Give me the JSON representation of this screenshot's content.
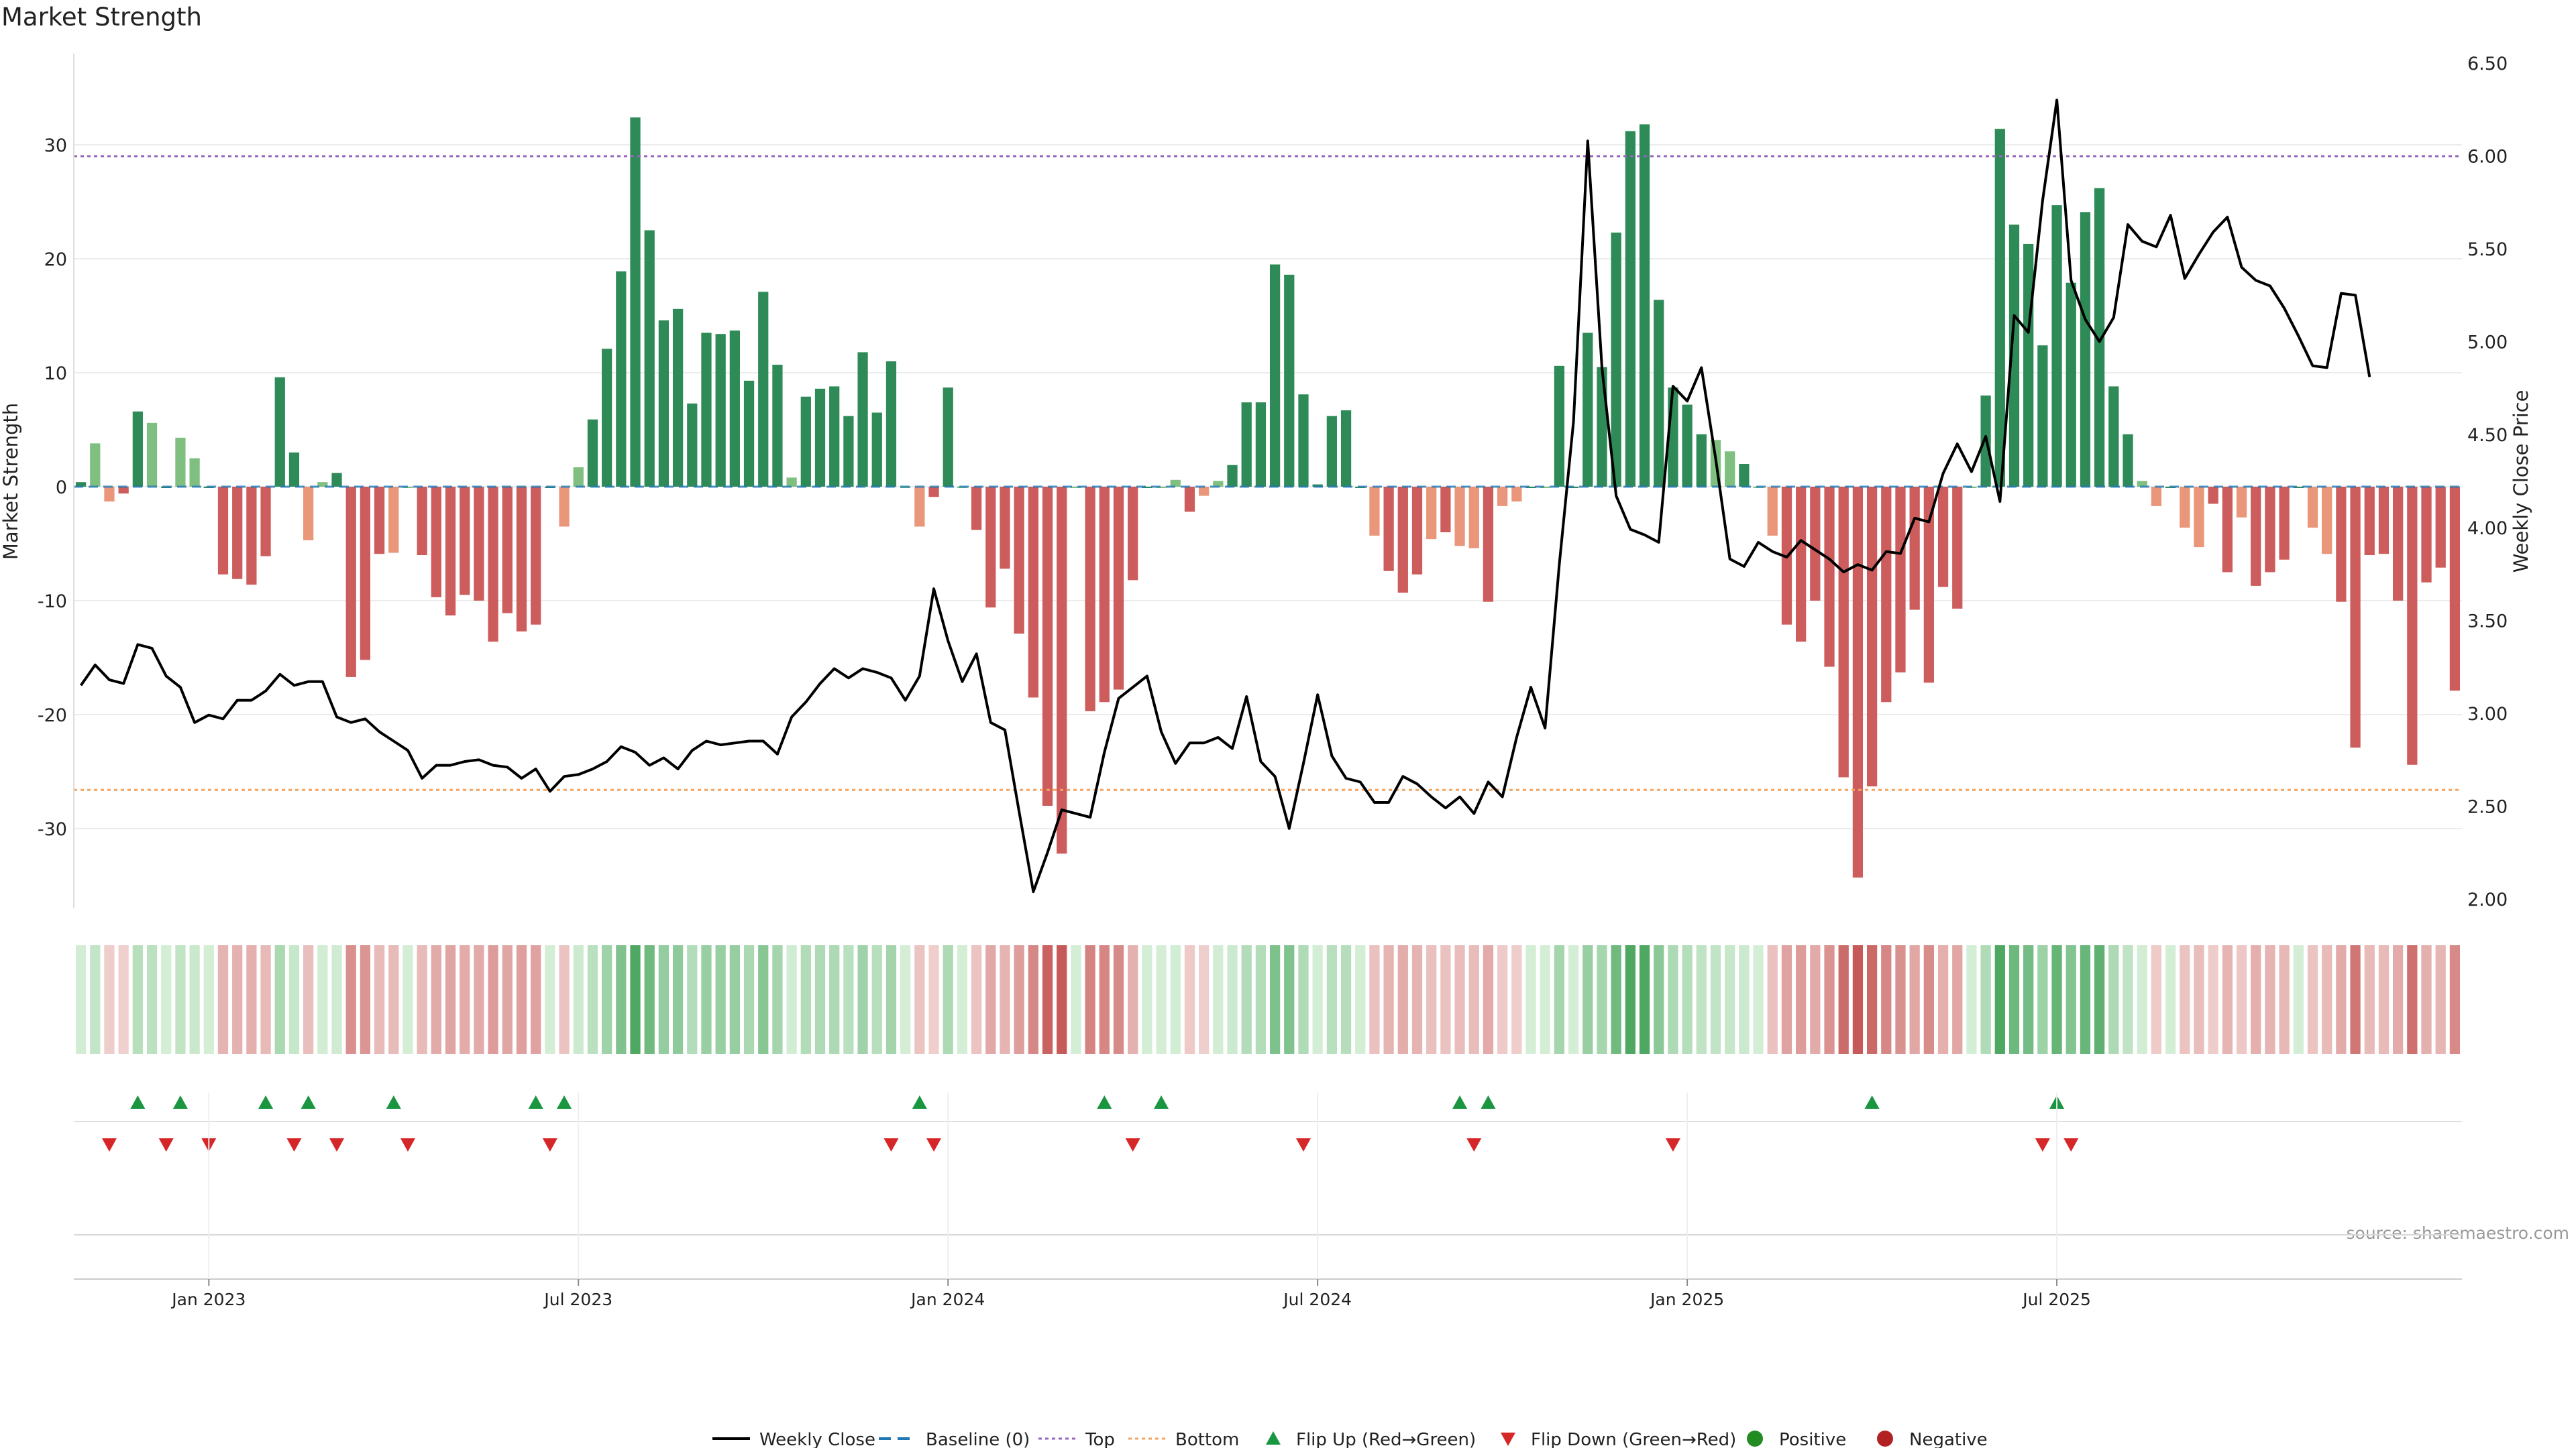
{
  "chart_data": {
    "type": "bar",
    "title": "Market Strength",
    "ylabel_left": "Market Strength",
    "ylabel_right": "Weekly Close Price",
    "source": "source: sharemaestro.com",
    "ylim_left": [
      -37,
      38
    ],
    "ylim_right": [
      1.95,
      6.55
    ],
    "yticks_left": [
      30,
      20,
      10,
      0,
      -10,
      -20,
      -30
    ],
    "yticks_right": [
      "6.50",
      "6.00",
      "5.50",
      "5.00",
      "4.50",
      "4.00",
      "3.50",
      "3.00",
      "2.50",
      "2.00"
    ],
    "x_ticks": [
      {
        "label": "Jan 2023",
        "week": 9
      },
      {
        "label": "Jul 2023",
        "week": 35
      },
      {
        "label": "Jan 2024",
        "week": 61
      },
      {
        "label": "Jul 2024",
        "week": 87
      },
      {
        "label": "Jan 2025",
        "week": 113
      },
      {
        "label": "Jul 2025",
        "week": 139
      }
    ],
    "reference_lines": {
      "top": 29,
      "bottom": -26.6,
      "baseline": 0
    },
    "colors": {
      "pos_dark": "#2e8b57",
      "pos_light": "#7fbf7f",
      "neg_dark": "#cd5c5c",
      "neg_light": "#e9967a",
      "price_line": "#000000",
      "top_line": "#9467bd",
      "bottom_line": "#f4a460",
      "baseline": "#1f77b4",
      "flip_up": "#1a9641",
      "flip_down": "#d62728",
      "positive_dot": "#228b22",
      "negative_dot": "#b22222"
    },
    "strength_values": [
      0.4,
      3.8,
      -1.3,
      -0.6,
      6.6,
      5.6,
      0,
      4.3,
      2.5,
      0,
      -7.7,
      -8.1,
      -8.6,
      -6.1,
      9.6,
      3.0,
      -4.7,
      0.4,
      1.2,
      -16.7,
      -15.2,
      -5.9,
      -5.8,
      0,
      -6.0,
      -9.7,
      -11.3,
      -9.5,
      -10.0,
      -13.6,
      -11.1,
      -12.7,
      -12.1,
      0,
      -3.5,
      1.7,
      5.9,
      12.1,
      18.9,
      32.4,
      22.5,
      14.6,
      15.6,
      7.3,
      13.5,
      13.4,
      13.7,
      9.3,
      17.1,
      10.7,
      0.8,
      7.9,
      8.6,
      8.8,
      6.2,
      11.8,
      6.5,
      11.0,
      0,
      -3.5,
      -0.9,
      8.7,
      0,
      -3.8,
      -10.6,
      -7.2,
      -12.9,
      -18.5,
      -28.0,
      -32.2,
      0,
      -19.7,
      -18.9,
      -17.8,
      -8.2,
      0,
      0,
      0.6,
      -2.2,
      -0.8,
      0.5,
      1.9,
      7.4,
      7.4,
      19.5,
      18.6,
      8.1,
      0.2,
      6.2,
      6.7,
      0,
      -4.3,
      -7.4,
      -9.3,
      -7.7,
      -4.6,
      -4.0,
      -5.2,
      -5.4,
      -10.1,
      -1.7,
      -1.3,
      0,
      0,
      10.6,
      0,
      13.5,
      10.5,
      22.3,
      31.2,
      31.8,
      16.4,
      8.7,
      7.2,
      4.6,
      4.1,
      3.1,
      2.0,
      0,
      -4.3,
      -12.1,
      -13.6,
      -10.0,
      -15.8,
      -25.5,
      -34.3,
      -26.3,
      -18.9,
      -16.3,
      -10.8,
      -17.2,
      -8.8,
      -10.7,
      0,
      8.0,
      31.4,
      23.0,
      21.3,
      12.4,
      24.7,
      17.9,
      24.1,
      26.2,
      8.8,
      4.6,
      0.5,
      -1.7,
      0,
      -3.6,
      -5.3,
      -1.5,
      -7.5,
      -2.7,
      -8.7,
      -7.5,
      -6.4,
      0,
      -3.6,
      -5.9,
      -10.1,
      -22.9,
      -6.0,
      -5.9,
      -10.0,
      -24.4,
      -8.4,
      -7.1,
      -17.9
    ],
    "price_values": [
      3.15,
      3.26,
      3.18,
      3.16,
      3.37,
      3.35,
      3.2,
      3.14,
      2.95,
      2.99,
      2.97,
      3.07,
      3.07,
      3.12,
      3.21,
      3.15,
      3.17,
      3.17,
      2.98,
      2.95,
      2.97,
      2.9,
      2.85,
      2.8,
      2.65,
      2.72,
      2.72,
      2.74,
      2.75,
      2.72,
      2.71,
      2.65,
      2.7,
      2.58,
      2.66,
      2.67,
      2.7,
      2.74,
      2.82,
      2.79,
      2.72,
      2.76,
      2.7,
      2.8,
      2.85,
      2.83,
      2.84,
      2.85,
      2.85,
      2.78,
      2.98,
      3.06,
      3.16,
      3.24,
      3.19,
      3.24,
      3.22,
      3.19,
      3.07,
      3.2,
      3.67,
      3.39,
      3.17,
      3.32,
      2.95,
      2.91,
      2.47,
      2.04,
      2.25,
      2.48,
      2.46,
      2.44,
      2.79,
      3.08,
      3.14,
      3.2,
      2.9,
      2.73,
      2.84,
      2.84,
      2.87,
      2.81,
      3.09,
      2.74,
      2.66,
      2.38,
      2.73,
      3.1,
      2.77,
      2.65,
      2.63,
      2.52,
      2.52,
      2.66,
      2.62,
      2.55,
      2.49,
      2.55,
      2.46,
      2.63,
      2.55,
      2.87,
      3.14,
      2.92,
      3.8,
      4.57,
      6.08,
      4.86,
      4.17,
      3.99,
      3.96,
      3.92,
      4.76,
      4.68,
      4.86,
      4.37,
      3.83,
      3.79,
      3.92,
      3.87,
      3.84,
      3.93,
      3.88,
      3.83,
      3.76,
      3.8,
      3.77,
      3.87,
      3.86,
      4.05,
      4.03,
      4.29,
      4.45,
      4.3,
      4.49,
      4.14,
      5.14,
      5.05,
      5.76,
      6.3,
      5.33,
      5.12,
      5.0,
      5.13,
      5.63,
      5.54,
      5.51,
      5.68,
      5.34,
      5.47,
      5.59,
      5.67,
      5.4,
      5.33,
      5.3,
      5.18,
      5.03,
      4.87,
      4.86,
      5.26,
      5.25,
      4.81
    ],
    "flip_up_weeks": [
      4,
      7,
      13,
      16,
      22,
      32,
      34,
      59,
      72,
      76,
      97,
      99,
      126,
      139
    ],
    "flip_down_weeks": [
      2,
      6,
      9,
      15,
      18,
      23,
      33,
      57,
      60,
      74,
      86,
      98,
      112,
      138,
      140
    ],
    "legend": [
      {
        "label": "Weekly Close",
        "symbol": "line"
      },
      {
        "label": "Baseline (0)",
        "symbol": "dash"
      },
      {
        "label": "Top",
        "symbol": "dotted"
      },
      {
        "label": "Bottom",
        "symbol": "dotted-orange"
      },
      {
        "label": "Flip Up (Red→Green)",
        "symbol": "triangle-up"
      },
      {
        "label": "Flip Down (Green→Red)",
        "symbol": "triangle-down"
      },
      {
        "label": "Positive",
        "symbol": "dot-green"
      },
      {
        "label": "Negative",
        "symbol": "dot-red"
      }
    ]
  }
}
